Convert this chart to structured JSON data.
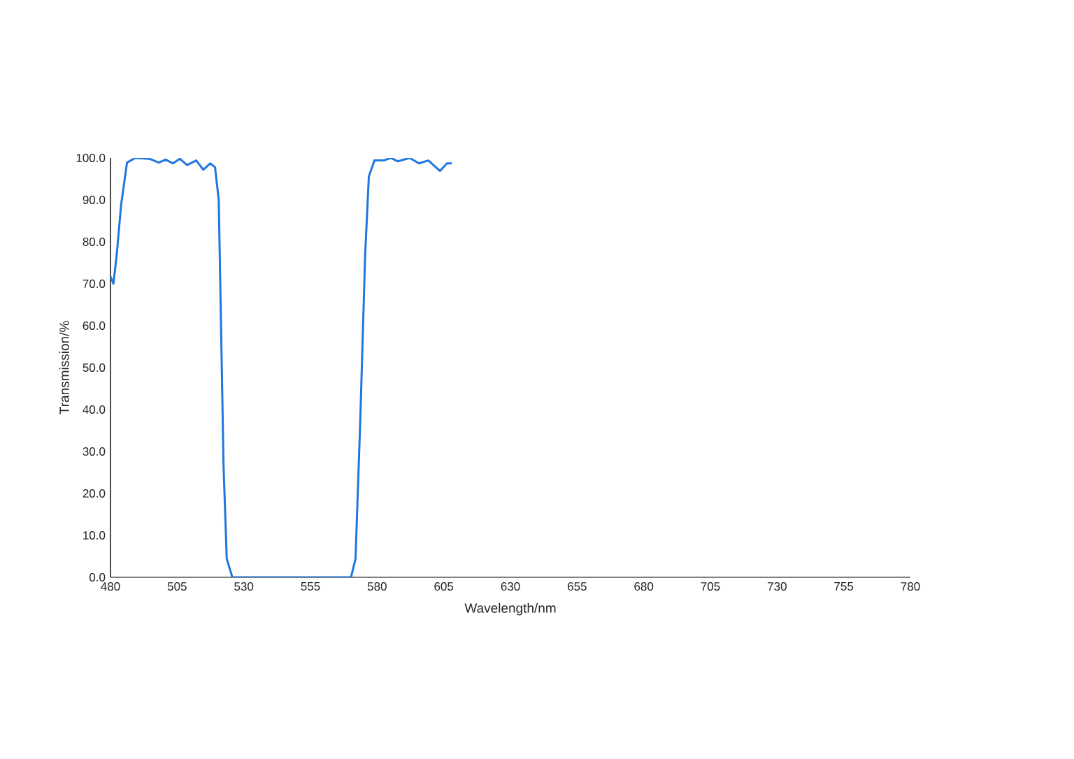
{
  "chart_data": {
    "type": "line",
    "xlabel": "Wavelength/nm",
    "ylabel": "Transmission/%",
    "xlim": [
      480,
      780
    ],
    "ylim": [
      0,
      100
    ],
    "xticks": [
      480,
      505,
      530,
      555,
      580,
      605,
      630,
      655,
      680,
      705,
      730,
      755,
      780
    ],
    "yticks": [
      {
        "value": 0,
        "label": "0.0"
      },
      {
        "value": 10,
        "label": "10.0"
      },
      {
        "value": 20,
        "label": "20.0"
      },
      {
        "value": 30,
        "label": "30.0"
      },
      {
        "value": 40,
        "label": "40.0"
      },
      {
        "value": 50,
        "label": "50.0"
      },
      {
        "value": 60,
        "label": "60.0"
      },
      {
        "value": 70,
        "label": "70.0"
      },
      {
        "value": 80,
        "label": "80.0"
      },
      {
        "value": 90,
        "label": "90.0"
      },
      {
        "value": 100,
        "label": "100.0"
      }
    ],
    "grid": false,
    "marker": "none",
    "line_style": "solid",
    "x": [
      480,
      481.1,
      482.3,
      484,
      486.2,
      489.3,
      494.6,
      498.1,
      500.7,
      503.4,
      506,
      508.7,
      512.2,
      514.8,
      517.4,
      519.2,
      520.6,
      521.3,
      522.4,
      523.6,
      525.7,
      570.2,
      571.9,
      573.7,
      575.5,
      576.9,
      579,
      582.5,
      585.1,
      587.8,
      592.2,
      595.7,
      599.2,
      603.6,
      606.2,
      608
    ],
    "series": [
      {
        "color": "#1f77e0",
        "values": [
          71.7,
          70,
          76.7,
          88.9,
          98.9,
          100,
          99.8,
          98.9,
          99.6,
          98.7,
          99.8,
          98.3,
          99.4,
          97.2,
          98.7,
          97.8,
          90,
          65.6,
          26.7,
          4.4,
          0,
          0,
          4.4,
          37.8,
          76.7,
          95.6,
          99.4,
          99.4,
          100,
          99.2,
          100,
          98.7,
          99.4,
          96.9,
          98.7,
          98.7
        ]
      }
    ]
  }
}
